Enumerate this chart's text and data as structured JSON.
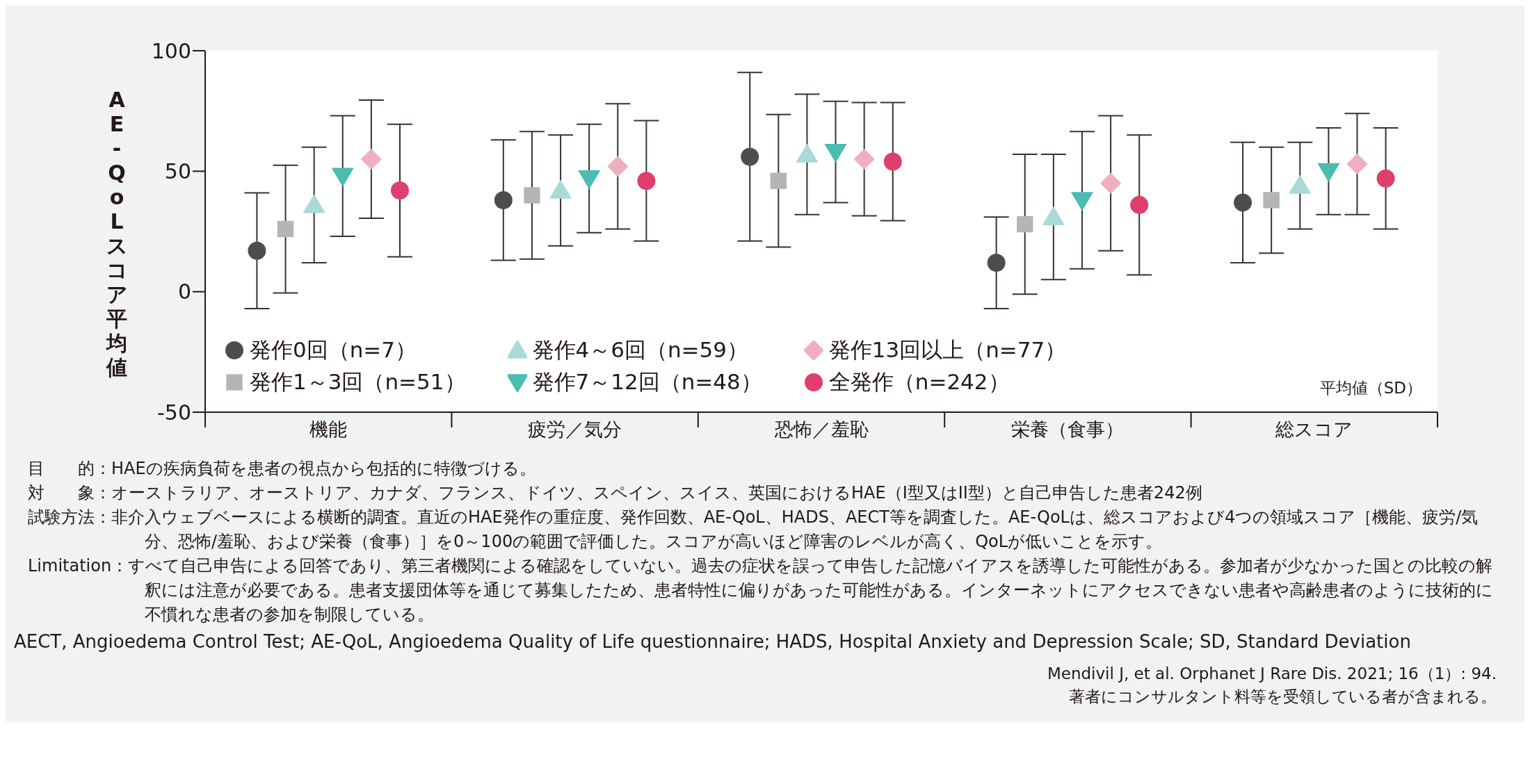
{
  "chart_data": {
    "type": "scatter",
    "ylabel": "AE-QoLスコア平均値",
    "categories": [
      "機能",
      "疲労／気分",
      "恐怖／羞恥",
      "栄養（食事）",
      "総スコア"
    ],
    "series": [
      {
        "name": "発作0回（n=7）",
        "color": "#4d4d4d",
        "marker": "circle",
        "values": [
          17,
          38,
          56,
          12,
          37
        ],
        "errors": [
          24,
          25,
          35,
          19,
          25
        ]
      },
      {
        "name": "発作1～3回（n=51）",
        "color": "#b5b5b5",
        "marker": "square",
        "values": [
          26,
          40,
          46,
          28,
          38
        ],
        "errors": [
          26.5,
          26.5,
          27.5,
          29,
          22
        ]
      },
      {
        "name": "発作4～6回（n=59）",
        "color": "#a8dad7",
        "marker": "triangle",
        "values": [
          36,
          42,
          57,
          31,
          44
        ],
        "errors": [
          24,
          23,
          25,
          26,
          18
        ]
      },
      {
        "name": "発作7～12回（n=48）",
        "color": "#4abcb0",
        "marker": "triangle-down",
        "values": [
          48,
          47,
          58,
          38,
          50
        ],
        "errors": [
          25,
          22.5,
          21,
          28.5,
          18
        ]
      },
      {
        "name": "発作13回以上（n=77）",
        "color": "#f0afc0",
        "marker": "diamond",
        "values": [
          55,
          52,
          55,
          45,
          53
        ],
        "errors": [
          24.5,
          26,
          23.5,
          28,
          21
        ]
      },
      {
        "name": "全発作（n=242）",
        "color": "#df3f6a",
        "marker": "circle",
        "values": [
          42,
          46,
          54,
          36,
          47
        ],
        "errors": [
          27.5,
          25,
          24.5,
          29,
          21
        ]
      }
    ],
    "ylim": [
      -50,
      100
    ],
    "yticks": [
      -50,
      0,
      50,
      100
    ],
    "legend": "bottom left",
    "annotations": [
      "平均値（SD）",
      "目　　的：HAEの疾病負荷を患者の視点から包括的に特徴づける。",
      "対　　象：オーストラリア、オーストリア、カナダ、フランス、ドイツ、スペイン、スイス、英国におけるHAE（I型又はII型）と自己申告した患者242例",
      "試験方法：非介入ウェブベースによる横断的調査。直近のHAE発作の重症度、発作回数、AE-QoL、HADS、AECT等を調査した。AE-QoLは、総スコアおよび4つの領域スコア［機能、疲労/気分、恐怖/羞恥、および栄養（食事）］を0～100の範囲で評価した。スコアが高いほど障害のレベルが高く、QoLが低いことを示す。",
      "Limitation：すべて自己申告による回答であり、第三者機関による確認をしていない。過去の症状を誤って申告した記憶バイアスを誘導した可能性がある。参加者が少なかった国との比較の解釈には注意が必要である。患者支援団体等を通じて募集したため、患者特性に偏りがあった可能性がある。インターネットにアクセスできない患者や高齢患者のように技術的に不慣れな患者の参加を制限している。",
      "AECT, Angioedema Control Test; AE-QoL, Angioedema Quality of Life questionnaire; HADS, Hospital Anxiety and Depression Scale; SD, Standard Deviation",
      "Mendivil J, et al. Orphanet J Rare Dis. 2021; 16（1）: 94.",
      "著者にコンサルタント料等を受領している者が含まれる。"
    ]
  }
}
